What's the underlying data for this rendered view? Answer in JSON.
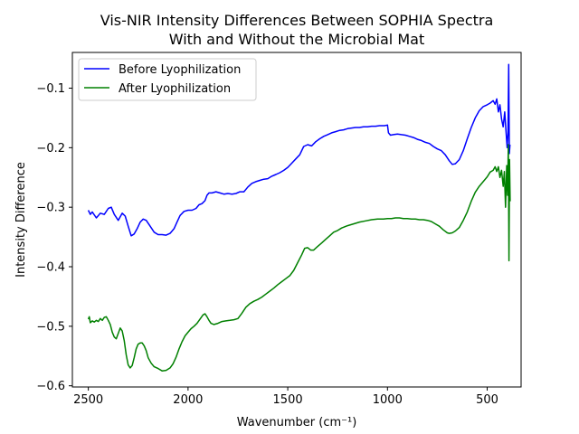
{
  "chart_data": {
    "type": "line",
    "title": [
      "Vis-NIR Intensity Differences Between SOPHIA Spectra",
      "With and Without the Microbial Mat"
    ],
    "xlabel": "Wavenumber (cm⁻¹)",
    "ylabel": "Intensity Difference",
    "x_reversed": true,
    "xlim": [
      2580,
      330
    ],
    "ylim": [
      -0.602,
      -0.04
    ],
    "x_ticks": [
      2500,
      2000,
      1500,
      1000,
      500
    ],
    "y_ticks": [
      -0.1,
      -0.2,
      -0.3,
      -0.4,
      -0.5,
      -0.6
    ],
    "x_tick_labels": [
      "2500",
      "2000",
      "1500",
      "1000",
      "500"
    ],
    "y_tick_labels": [
      "−0.1",
      "−0.2",
      "−0.3",
      "−0.4",
      "−0.5",
      "−0.6"
    ],
    "legend_position": "top-left",
    "grid": false,
    "series": [
      {
        "name": "Before Lyophilization",
        "color": "#0000ff",
        "points": [
          [
            2500,
            -0.305
          ],
          [
            2490,
            -0.312
          ],
          [
            2480,
            -0.308
          ],
          [
            2460,
            -0.318
          ],
          [
            2440,
            -0.31
          ],
          [
            2420,
            -0.312
          ],
          [
            2400,
            -0.302
          ],
          [
            2385,
            -0.3
          ],
          [
            2370,
            -0.312
          ],
          [
            2350,
            -0.322
          ],
          [
            2330,
            -0.31
          ],
          [
            2315,
            -0.315
          ],
          [
            2300,
            -0.332
          ],
          [
            2285,
            -0.348
          ],
          [
            2270,
            -0.345
          ],
          [
            2255,
            -0.336
          ],
          [
            2240,
            -0.325
          ],
          [
            2225,
            -0.32
          ],
          [
            2210,
            -0.322
          ],
          [
            2190,
            -0.332
          ],
          [
            2170,
            -0.342
          ],
          [
            2150,
            -0.346
          ],
          [
            2130,
            -0.346
          ],
          [
            2110,
            -0.347
          ],
          [
            2090,
            -0.344
          ],
          [
            2070,
            -0.336
          ],
          [
            2055,
            -0.325
          ],
          [
            2040,
            -0.314
          ],
          [
            2020,
            -0.307
          ],
          [
            2000,
            -0.305
          ],
          [
            1980,
            -0.305
          ],
          [
            1960,
            -0.302
          ],
          [
            1945,
            -0.296
          ],
          [
            1930,
            -0.294
          ],
          [
            1915,
            -0.289
          ],
          [
            1905,
            -0.28
          ],
          [
            1895,
            -0.276
          ],
          [
            1880,
            -0.276
          ],
          [
            1860,
            -0.274
          ],
          [
            1840,
            -0.276
          ],
          [
            1820,
            -0.278
          ],
          [
            1800,
            -0.277
          ],
          [
            1780,
            -0.278
          ],
          [
            1760,
            -0.277
          ],
          [
            1740,
            -0.274
          ],
          [
            1720,
            -0.274
          ],
          [
            1700,
            -0.266
          ],
          [
            1680,
            -0.26
          ],
          [
            1660,
            -0.257
          ],
          [
            1640,
            -0.255
          ],
          [
            1620,
            -0.253
          ],
          [
            1600,
            -0.252
          ],
          [
            1580,
            -0.248
          ],
          [
            1560,
            -0.245
          ],
          [
            1540,
            -0.242
          ],
          [
            1520,
            -0.238
          ],
          [
            1500,
            -0.233
          ],
          [
            1480,
            -0.226
          ],
          [
            1460,
            -0.219
          ],
          [
            1440,
            -0.212
          ],
          [
            1420,
            -0.198
          ],
          [
            1400,
            -0.195
          ],
          [
            1380,
            -0.197
          ],
          [
            1360,
            -0.19
          ],
          [
            1340,
            -0.185
          ],
          [
            1320,
            -0.181
          ],
          [
            1300,
            -0.178
          ],
          [
            1280,
            -0.175
          ],
          [
            1260,
            -0.173
          ],
          [
            1240,
            -0.171
          ],
          [
            1220,
            -0.17
          ],
          [
            1200,
            -0.168
          ],
          [
            1180,
            -0.167
          ],
          [
            1160,
            -0.166
          ],
          [
            1140,
            -0.166
          ],
          [
            1120,
            -0.165
          ],
          [
            1100,
            -0.165
          ],
          [
            1080,
            -0.164
          ],
          [
            1060,
            -0.164
          ],
          [
            1040,
            -0.163
          ],
          [
            1015,
            -0.163
          ],
          [
            1000,
            -0.162
          ],
          [
            995,
            -0.175
          ],
          [
            985,
            -0.179
          ],
          [
            970,
            -0.178
          ],
          [
            950,
            -0.177
          ],
          [
            930,
            -0.178
          ],
          [
            910,
            -0.179
          ],
          [
            890,
            -0.181
          ],
          [
            870,
            -0.183
          ],
          [
            850,
            -0.186
          ],
          [
            830,
            -0.188
          ],
          [
            810,
            -0.191
          ],
          [
            790,
            -0.193
          ],
          [
            770,
            -0.198
          ],
          [
            750,
            -0.202
          ],
          [
            730,
            -0.205
          ],
          [
            710,
            -0.212
          ],
          [
            690,
            -0.222
          ],
          [
            675,
            -0.228
          ],
          [
            660,
            -0.227
          ],
          [
            640,
            -0.22
          ],
          [
            620,
            -0.205
          ],
          [
            600,
            -0.185
          ],
          [
            580,
            -0.166
          ],
          [
            560,
            -0.15
          ],
          [
            540,
            -0.138
          ],
          [
            520,
            -0.131
          ],
          [
            500,
            -0.128
          ],
          [
            485,
            -0.125
          ],
          [
            470,
            -0.121
          ],
          [
            460,
            -0.127
          ],
          [
            452,
            -0.118
          ],
          [
            444,
            -0.14
          ],
          [
            436,
            -0.128
          ],
          [
            428,
            -0.152
          ],
          [
            420,
            -0.165
          ],
          [
            412,
            -0.14
          ],
          [
            406,
            -0.17
          ],
          [
            400,
            -0.2
          ],
          [
            396,
            -0.175
          ],
          [
            392,
            -0.06
          ],
          [
            389,
            -0.21
          ],
          [
            386,
            -0.195
          ]
        ]
      },
      {
        "name": "After Lyophilization",
        "color": "#008000",
        "points": [
          [
            2500,
            -0.488
          ],
          [
            2495,
            -0.484
          ],
          [
            2490,
            -0.494
          ],
          [
            2480,
            -0.491
          ],
          [
            2470,
            -0.493
          ],
          [
            2460,
            -0.49
          ],
          [
            2450,
            -0.492
          ],
          [
            2440,
            -0.487
          ],
          [
            2430,
            -0.49
          ],
          [
            2420,
            -0.485
          ],
          [
            2410,
            -0.484
          ],
          [
            2400,
            -0.49
          ],
          [
            2390,
            -0.497
          ],
          [
            2380,
            -0.51
          ],
          [
            2370,
            -0.518
          ],
          [
            2360,
            -0.521
          ],
          [
            2350,
            -0.512
          ],
          [
            2340,
            -0.503
          ],
          [
            2330,
            -0.508
          ],
          [
            2320,
            -0.524
          ],
          [
            2310,
            -0.548
          ],
          [
            2300,
            -0.565
          ],
          [
            2290,
            -0.57
          ],
          [
            2280,
            -0.566
          ],
          [
            2270,
            -0.553
          ],
          [
            2260,
            -0.538
          ],
          [
            2250,
            -0.53
          ],
          [
            2240,
            -0.528
          ],
          [
            2230,
            -0.528
          ],
          [
            2220,
            -0.533
          ],
          [
            2210,
            -0.541
          ],
          [
            2200,
            -0.553
          ],
          [
            2185,
            -0.562
          ],
          [
            2170,
            -0.568
          ],
          [
            2150,
            -0.571
          ],
          [
            2130,
            -0.575
          ],
          [
            2110,
            -0.574
          ],
          [
            2090,
            -0.57
          ],
          [
            2075,
            -0.563
          ],
          [
            2060,
            -0.552
          ],
          [
            2045,
            -0.538
          ],
          [
            2030,
            -0.526
          ],
          [
            2015,
            -0.516
          ],
          [
            2000,
            -0.51
          ],
          [
            1985,
            -0.504
          ],
          [
            1970,
            -0.5
          ],
          [
            1955,
            -0.495
          ],
          [
            1940,
            -0.488
          ],
          [
            1925,
            -0.481
          ],
          [
            1915,
            -0.479
          ],
          [
            1905,
            -0.484
          ],
          [
            1895,
            -0.49
          ],
          [
            1885,
            -0.495
          ],
          [
            1870,
            -0.497
          ],
          [
            1850,
            -0.495
          ],
          [
            1830,
            -0.492
          ],
          [
            1810,
            -0.491
          ],
          [
            1790,
            -0.49
          ],
          [
            1770,
            -0.489
          ],
          [
            1750,
            -0.487
          ],
          [
            1730,
            -0.478
          ],
          [
            1710,
            -0.468
          ],
          [
            1690,
            -0.462
          ],
          [
            1670,
            -0.458
          ],
          [
            1650,
            -0.455
          ],
          [
            1630,
            -0.451
          ],
          [
            1610,
            -0.446
          ],
          [
            1590,
            -0.441
          ],
          [
            1570,
            -0.436
          ],
          [
            1550,
            -0.43
          ],
          [
            1530,
            -0.425
          ],
          [
            1510,
            -0.42
          ],
          [
            1490,
            -0.415
          ],
          [
            1470,
            -0.406
          ],
          [
            1450,
            -0.393
          ],
          [
            1430,
            -0.38
          ],
          [
            1415,
            -0.369
          ],
          [
            1400,
            -0.368
          ],
          [
            1385,
            -0.372
          ],
          [
            1370,
            -0.372
          ],
          [
            1350,
            -0.366
          ],
          [
            1330,
            -0.36
          ],
          [
            1310,
            -0.354
          ],
          [
            1290,
            -0.348
          ],
          [
            1270,
            -0.342
          ],
          [
            1250,
            -0.339
          ],
          [
            1230,
            -0.335
          ],
          [
            1200,
            -0.331
          ],
          [
            1170,
            -0.328
          ],
          [
            1140,
            -0.325
          ],
          [
            1110,
            -0.323
          ],
          [
            1080,
            -0.321
          ],
          [
            1050,
            -0.32
          ],
          [
            1020,
            -0.32
          ],
          [
            1000,
            -0.319
          ],
          [
            980,
            -0.319
          ],
          [
            960,
            -0.318
          ],
          [
            940,
            -0.318
          ],
          [
            920,
            -0.319
          ],
          [
            900,
            -0.319
          ],
          [
            880,
            -0.32
          ],
          [
            860,
            -0.32
          ],
          [
            840,
            -0.321
          ],
          [
            820,
            -0.321
          ],
          [
            800,
            -0.322
          ],
          [
            780,
            -0.324
          ],
          [
            760,
            -0.328
          ],
          [
            740,
            -0.332
          ],
          [
            720,
            -0.338
          ],
          [
            700,
            -0.343
          ],
          [
            690,
            -0.344
          ],
          [
            675,
            -0.343
          ],
          [
            660,
            -0.34
          ],
          [
            640,
            -0.334
          ],
          [
            620,
            -0.322
          ],
          [
            600,
            -0.308
          ],
          [
            580,
            -0.29
          ],
          [
            560,
            -0.275
          ],
          [
            540,
            -0.265
          ],
          [
            520,
            -0.257
          ],
          [
            500,
            -0.249
          ],
          [
            485,
            -0.241
          ],
          [
            470,
            -0.238
          ],
          [
            460,
            -0.232
          ],
          [
            452,
            -0.24
          ],
          [
            444,
            -0.232
          ],
          [
            436,
            -0.25
          ],
          [
            428,
            -0.238
          ],
          [
            420,
            -0.265
          ],
          [
            414,
            -0.24
          ],
          [
            408,
            -0.3
          ],
          [
            402,
            -0.23
          ],
          [
            398,
            -0.28
          ],
          [
            394,
            -0.195
          ],
          [
            391,
            -0.39
          ],
          [
            388,
            -0.22
          ],
          [
            385,
            -0.29
          ]
        ]
      }
    ]
  }
}
